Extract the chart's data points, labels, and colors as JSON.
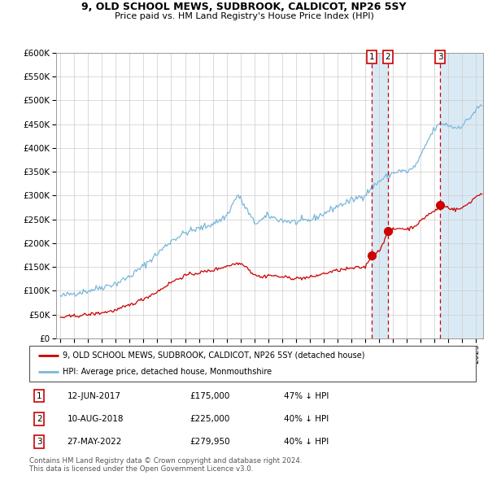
{
  "title": "9, OLD SCHOOL MEWS, SUDBROOK, CALDICOT, NP26 5SY",
  "subtitle": "Price paid vs. HM Land Registry's House Price Index (HPI)",
  "legend_line1": "9, OLD SCHOOL MEWS, SUDBROOK, CALDICOT, NP26 5SY (detached house)",
  "legend_line2": "HPI: Average price, detached house, Monmouthshire",
  "footer1": "Contains HM Land Registry data © Crown copyright and database right 2024.",
  "footer2": "This data is licensed under the Open Government Licence v3.0.",
  "transactions": [
    {
      "num": 1,
      "date": "12-JUN-2017",
      "price": "£175,000",
      "pct": "47% ↓ HPI",
      "year": 2017.45
    },
    {
      "num": 2,
      "date": "10-AUG-2018",
      "price": "£225,000",
      "pct": "40% ↓ HPI",
      "year": 2018.62
    },
    {
      "num": 3,
      "date": "27-MAY-2022",
      "price": "£279,950",
      "pct": "40% ↓ HPI",
      "year": 2022.41
    }
  ],
  "hpi_color": "#7ab8d9",
  "price_color": "#cc0000",
  "vline_color": "#cc0000",
  "vshade_color": "#daeaf5",
  "ylim": [
    0,
    600000
  ],
  "yticks": [
    0,
    50000,
    100000,
    150000,
    200000,
    250000,
    300000,
    350000,
    400000,
    450000,
    500000,
    550000,
    600000
  ],
  "xlim_start": 1994.7,
  "xlim_end": 2025.5,
  "hpi_anchors": [
    [
      1995.0,
      88000
    ],
    [
      1996.0,
      95000
    ],
    [
      1997.0,
      100000
    ],
    [
      1998.0,
      108000
    ],
    [
      1999.0,
      115000
    ],
    [
      2000.0,
      130000
    ],
    [
      2001.0,
      152000
    ],
    [
      2002.0,
      178000
    ],
    [
      2003.0,
      205000
    ],
    [
      2004.0,
      222000
    ],
    [
      2005.5,
      235000
    ],
    [
      2006.5,
      248000
    ],
    [
      2007.0,
      258000
    ],
    [
      2007.8,
      302000
    ],
    [
      2008.5,
      268000
    ],
    [
      2009.0,
      242000
    ],
    [
      2009.5,
      248000
    ],
    [
      2010.0,
      258000
    ],
    [
      2010.5,
      252000
    ],
    [
      2011.0,
      248000
    ],
    [
      2012.0,
      244000
    ],
    [
      2013.0,
      248000
    ],
    [
      2014.0,
      262000
    ],
    [
      2015.0,
      278000
    ],
    [
      2016.0,
      290000
    ],
    [
      2017.0,
      302000
    ],
    [
      2017.5,
      318000
    ],
    [
      2018.0,
      330000
    ],
    [
      2018.5,
      340000
    ],
    [
      2019.0,
      348000
    ],
    [
      2019.5,
      352000
    ],
    [
      2020.0,
      350000
    ],
    [
      2020.5,
      358000
    ],
    [
      2021.0,
      382000
    ],
    [
      2021.5,
      415000
    ],
    [
      2022.0,
      440000
    ],
    [
      2022.5,
      452000
    ],
    [
      2023.0,
      448000
    ],
    [
      2023.5,
      442000
    ],
    [
      2024.0,
      448000
    ],
    [
      2024.5,
      462000
    ],
    [
      2025.0,
      480000
    ],
    [
      2025.4,
      490000
    ]
  ],
  "price_anchors": [
    [
      1995.0,
      44000
    ],
    [
      1996.0,
      47000
    ],
    [
      1997.0,
      50000
    ],
    [
      1998.0,
      54000
    ],
    [
      1999.0,
      59000
    ],
    [
      2000.0,
      70000
    ],
    [
      2001.0,
      83000
    ],
    [
      2002.0,
      98000
    ],
    [
      2003.0,
      118000
    ],
    [
      2004.0,
      132000
    ],
    [
      2005.0,
      138000
    ],
    [
      2006.0,
      143000
    ],
    [
      2007.0,
      152000
    ],
    [
      2007.8,
      158000
    ],
    [
      2008.3,
      155000
    ],
    [
      2008.8,
      138000
    ],
    [
      2009.5,
      128000
    ],
    [
      2010.0,
      133000
    ],
    [
      2011.0,
      129000
    ],
    [
      2012.0,
      126000
    ],
    [
      2013.0,
      128000
    ],
    [
      2014.0,
      136000
    ],
    [
      2015.0,
      143000
    ],
    [
      2016.0,
      147000
    ],
    [
      2017.0,
      150000
    ],
    [
      2017.44,
      173000
    ],
    [
      2017.46,
      177000
    ],
    [
      2017.5,
      176000
    ],
    [
      2018.0,
      183000
    ],
    [
      2018.61,
      223000
    ],
    [
      2018.63,
      227000
    ],
    [
      2018.7,
      225000
    ],
    [
      2019.0,
      228000
    ],
    [
      2019.5,
      232000
    ],
    [
      2020.0,
      229000
    ],
    [
      2020.5,
      235000
    ],
    [
      2021.0,
      246000
    ],
    [
      2021.5,
      260000
    ],
    [
      2022.0,
      267000
    ],
    [
      2022.4,
      278000
    ],
    [
      2022.42,
      282000
    ],
    [
      2022.5,
      280000
    ],
    [
      2023.0,
      275000
    ],
    [
      2023.5,
      270000
    ],
    [
      2024.0,
      274000
    ],
    [
      2024.5,
      285000
    ],
    [
      2025.0,
      298000
    ],
    [
      2025.4,
      305000
    ]
  ]
}
